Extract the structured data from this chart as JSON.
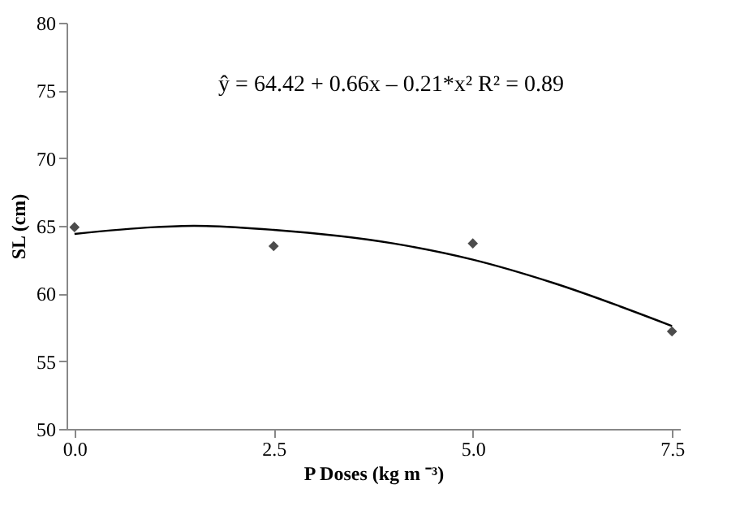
{
  "chart_data": {
    "type": "scatter",
    "xlabel": "P Doses (kg m ⁻³)",
    "ylabel": "SL (cm)",
    "x": [
      0,
      2.5,
      5,
      7.5
    ],
    "series": [
      {
        "type": "scatter",
        "color": "#000000",
        "marker": "diamond",
        "values": [
          64.9,
          63.5,
          63.7,
          57.2
        ]
      },
      {
        "type": "line",
        "color": "#000000",
        "marker": "none",
        "x": [
          0,
          1,
          1.5,
          2.5,
          4,
          5,
          6,
          7.5
        ],
        "values": [
          64.4,
          64.9,
          65.0,
          64.7,
          63.7,
          62.5,
          60.8,
          57.6
        ]
      }
    ],
    "xlim": [
      -0.1,
      7.6
    ],
    "xticks": [
      {
        "value": 0,
        "label": "0.0"
      },
      2.5,
      {
        "value": 5,
        "label": "5.0"
      },
      7.5
    ],
    "ylim": [
      50,
      80
    ],
    "yticks": [
      50,
      55,
      60,
      65,
      70,
      75,
      80
    ],
    "grid": false,
    "annotations": [
      "ŷ = 64.42 + 0.66x – 0.21*x²    R² = 0.89"
    ]
  }
}
